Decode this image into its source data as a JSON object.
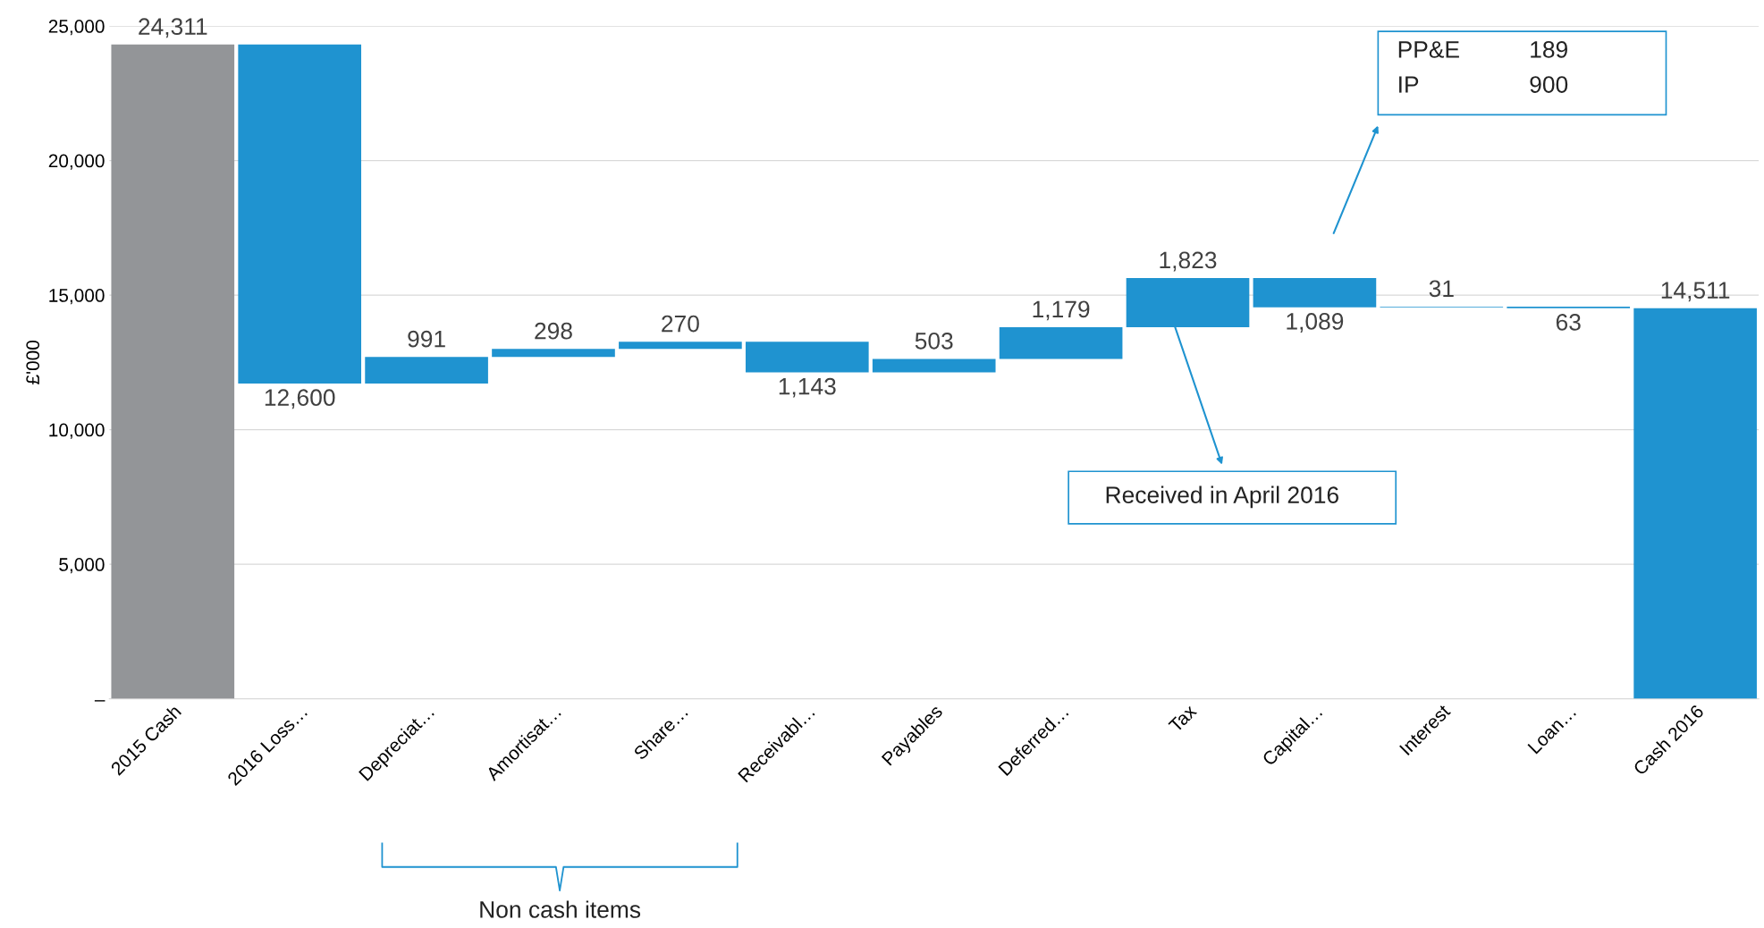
{
  "chart_data": {
    "type": "bar",
    "ylabel": "£'000",
    "categories": [
      "2015 Cash",
      "2016 Loss…",
      "Depreciat…",
      "Amortisat…",
      "Share…",
      "Receivabl…",
      "Payables",
      "Deferred…",
      "Tax",
      "Capital…",
      "Interest",
      "Loan…",
      "Cash 2016"
    ],
    "values": [
      24311,
      -12600,
      991,
      298,
      270,
      -1143,
      503,
      1179,
      1823,
      -1089,
      31,
      -63,
      14511
    ],
    "base": [
      0,
      24311,
      11711,
      12702,
      13000,
      13270,
      12127,
      12630,
      13809,
      15632,
      14543,
      14574,
      0
    ],
    "colors": [
      "#939598",
      "#1f93d0",
      "#1f93d0",
      "#1f93d0",
      "#1f93d0",
      "#1f93d0",
      "#1f93d0",
      "#1f93d0",
      "#1f93d0",
      "#1f93d0",
      "#1f93d0",
      "#1f93d0",
      "#1f93d0"
    ],
    "value_labels": [
      "24,311",
      "12,600",
      "991",
      "298",
      "270",
      "1,143",
      "503",
      "1,179",
      "1,823",
      "1,089",
      "31",
      "63",
      "14,511"
    ],
    "ylim": [
      0,
      25000
    ],
    "yticks": [
      {
        "value": 0,
        "label": "–"
      },
      {
        "value": 5000,
        "label": "5,000"
      },
      {
        "value": 10000,
        "label": "10,000"
      },
      {
        "value": 15000,
        "label": "15,000"
      },
      {
        "value": 20000,
        "label": "20,000"
      },
      {
        "value": 25000,
        "label": "25,000"
      }
    ],
    "grid": "y",
    "annotations": [
      "Received in April 2016",
      "PP&E",
      "189",
      "IP",
      "900",
      "Non cash items"
    ]
  }
}
